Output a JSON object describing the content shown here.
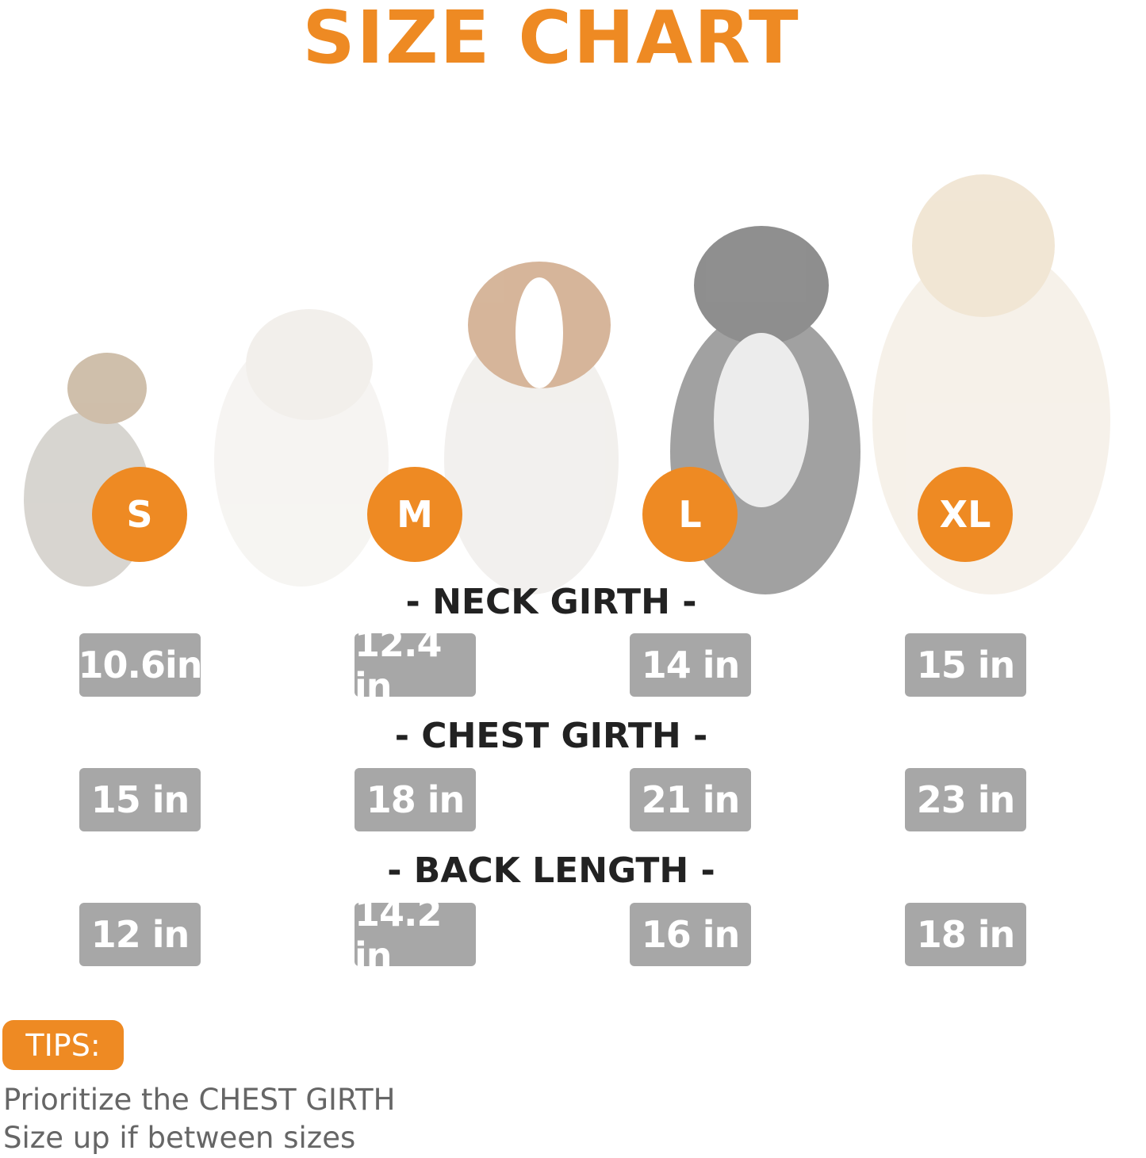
{
  "title": "SIZE CHART",
  "sizes": [
    "S",
    "M",
    "L",
    "XL"
  ],
  "dog_images": [
    "yorkshire-terrier",
    "french-bulldog",
    "beagle",
    "border-collie",
    "golden-retriever"
  ],
  "measurements": [
    {
      "heading": "- NECK GIRTH -",
      "values": [
        "10.6in",
        "12.4 in",
        "14 in",
        "15 in"
      ]
    },
    {
      "heading": "- CHEST GIRTH -",
      "values": [
        "15 in",
        "18 in",
        "21 in",
        "23 in"
      ]
    },
    {
      "heading": "- BACK LENGTH -",
      "values": [
        "12 in",
        "14.2 in",
        "16 in",
        "18 in"
      ]
    }
  ],
  "tips": {
    "label": "TIPS:",
    "lines": [
      "Prioritize the CHEST GIRTH",
      "Size up if between sizes"
    ]
  },
  "colors": {
    "accent": "#ee8a23",
    "badge": "#a7a7a7",
    "heading": "#222222",
    "tip_text": "#666666"
  }
}
